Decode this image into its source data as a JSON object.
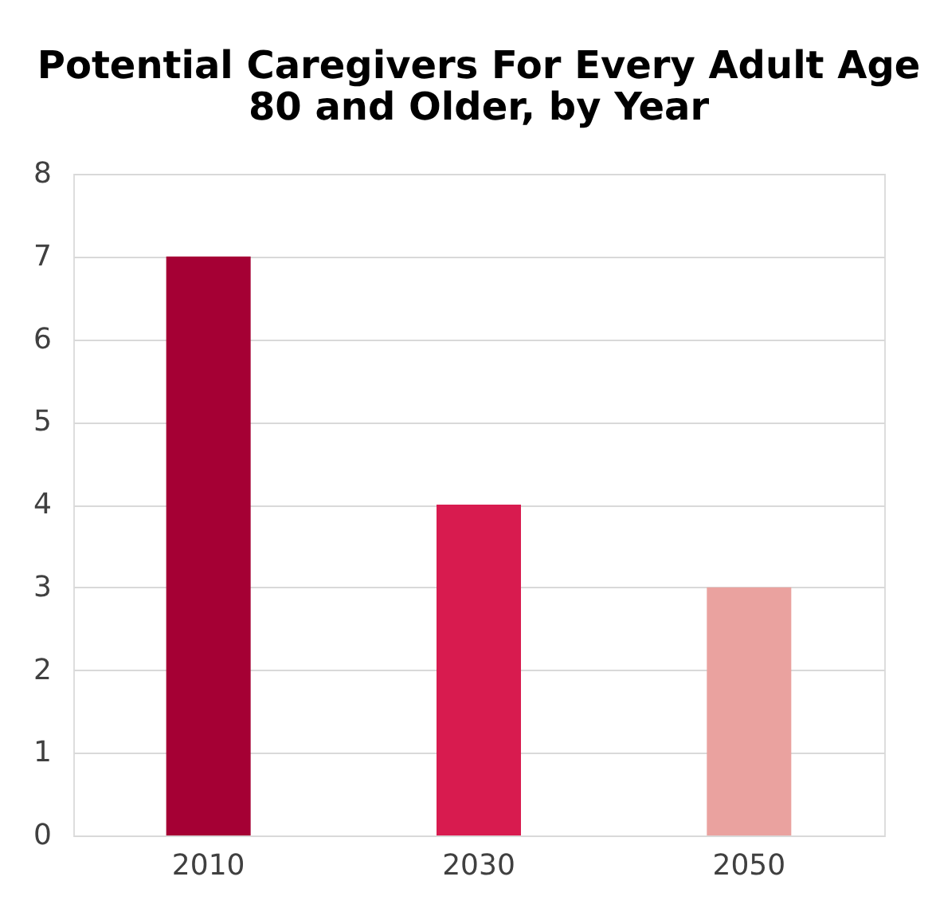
{
  "chart_data": {
    "type": "bar",
    "title": "Potential Caregivers For Every Adult Age 80 and Older, by Year",
    "categories": [
      "2010",
      "2030",
      "2050"
    ],
    "values": [
      7,
      4,
      3
    ],
    "colors": [
      "#a50034",
      "#d81b4f",
      "#eaa29f"
    ],
    "ylim": [
      0,
      8
    ],
    "yticks": [
      0,
      1,
      2,
      3,
      4,
      5,
      6,
      7,
      8
    ],
    "grid": "y",
    "legend": false
  }
}
